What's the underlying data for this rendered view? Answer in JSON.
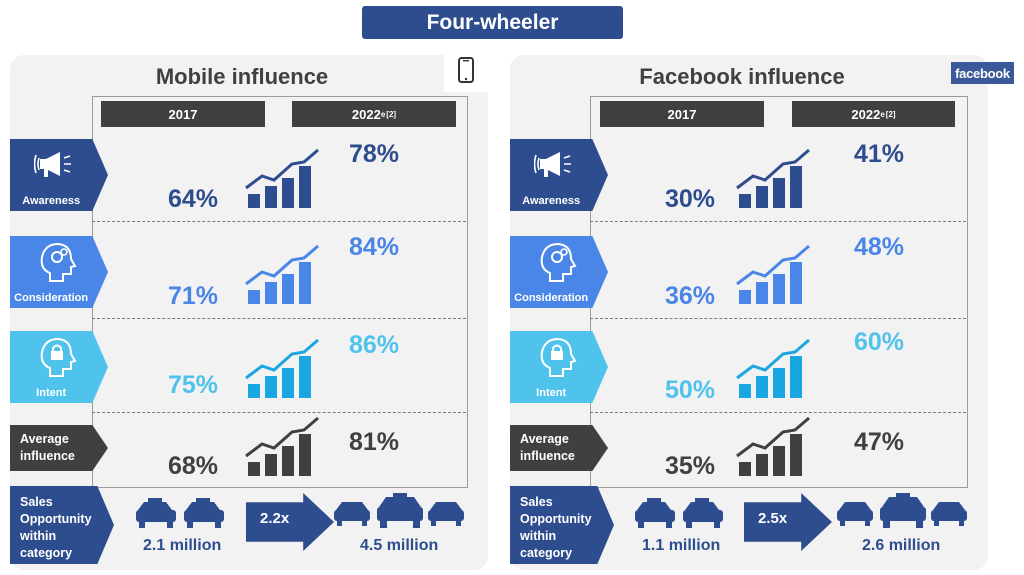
{
  "banner": "Four-wheeler",
  "colors": {
    "awareness": "#2e4d8e",
    "consideration": "#4a86e8",
    "intent": "#4fc3ec",
    "average": "#404040",
    "sales": "#2e4d8e"
  },
  "icons": {
    "phone": "smartphone-icon",
    "facebook": "facebook-logo",
    "awareness": "megaphone-icon",
    "consideration": "head-gears-icon",
    "intent": "head-lock-icon",
    "growth": "rising-bars-icon",
    "car": "car-icon"
  },
  "panels": [
    {
      "title": "Mobile influence",
      "year_a": "2017",
      "year_b": "2022",
      "year_b_sub": "e",
      "year_b_sup": "[2]",
      "rows": [
        {
          "label": "Awareness",
          "v2017": "64%",
          "v2022": "78%"
        },
        {
          "label": "Consideration",
          "v2017": "71%",
          "v2022": "84%"
        },
        {
          "label": "Intent",
          "v2017": "75%",
          "v2022": "86%"
        },
        {
          "label_line1": "Average",
          "label_line2": "influence",
          "v2017": "68%",
          "v2022": "81%"
        }
      ],
      "sales": {
        "line1": "Sales",
        "line2": "Opportunity",
        "line3": "within",
        "line4": "category",
        "before": "2.1 million",
        "multiplier": "2.2x",
        "after": "4.5 million"
      }
    },
    {
      "title": "Facebook influence",
      "logo_text": "facebook",
      "year_a": "2017",
      "year_b": "2022",
      "year_b_sub": "e",
      "year_b_sup": "[2]",
      "rows": [
        {
          "label": "Awareness",
          "v2017": "30%",
          "v2022": "41%"
        },
        {
          "label": "Consideration",
          "v2017": "36%",
          "v2022": "48%"
        },
        {
          "label": "Intent",
          "v2017": "50%",
          "v2022": "60%"
        },
        {
          "label_line1": "Average",
          "label_line2": "influence",
          "v2017": "35%",
          "v2022": "47%"
        }
      ],
      "sales": {
        "line1": "Sales",
        "line2": "Opportunity",
        "line3": "within",
        "line4": "category",
        "before": "1.1 million",
        "multiplier": "2.5x",
        "after": "2.6 million"
      }
    }
  ],
  "chart_data": [
    {
      "type": "table",
      "title": "Mobile influence",
      "columns": [
        "2017",
        "2022e"
      ],
      "rows": [
        "Awareness",
        "Consideration",
        "Intent",
        "Average influence"
      ],
      "series": [
        {
          "name": "2017",
          "values": [
            64,
            71,
            75,
            68
          ]
        },
        {
          "name": "2022e",
          "values": [
            78,
            84,
            86,
            81
          ]
        }
      ],
      "sales_opportunity": {
        "2017": "2.1 million",
        "2022e": "4.5 million",
        "multiplier": "2.2x"
      }
    },
    {
      "type": "table",
      "title": "Facebook influence",
      "columns": [
        "2017",
        "2022e"
      ],
      "rows": [
        "Awareness",
        "Consideration",
        "Intent",
        "Average influence"
      ],
      "series": [
        {
          "name": "2017",
          "values": [
            30,
            36,
            50,
            35
          ]
        },
        {
          "name": "2022e",
          "values": [
            41,
            48,
            60,
            47
          ]
        }
      ],
      "sales_opportunity": {
        "2017": "1.1 million",
        "2022e": "2.6 million",
        "multiplier": "2.5x"
      }
    }
  ]
}
